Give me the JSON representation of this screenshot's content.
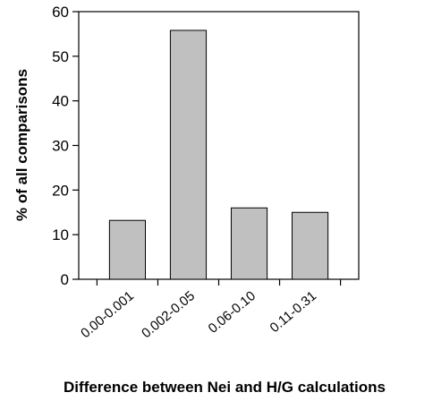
{
  "chart_data": {
    "type": "bar",
    "categories": [
      "0.00-0.001",
      "0.002-0.05",
      "0.06-0.10",
      "0.11-0.31"
    ],
    "values": [
      13.2,
      55.8,
      16.0,
      15.0
    ],
    "title": "",
    "xlabel": "Difference between Nei and H/G calculations",
    "ylabel": "% of all comparisons",
    "ylim": [
      0,
      60
    ],
    "yticks": [
      0,
      10,
      20,
      30,
      40,
      50,
      60
    ],
    "grid": false,
    "legend": "none",
    "colors": {
      "bar_fill": "#c0c0c0",
      "bar_stroke": "#000000",
      "axis": "#000000"
    }
  }
}
